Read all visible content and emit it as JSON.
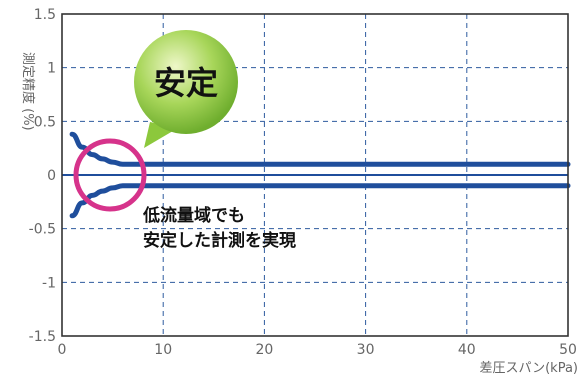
{
  "chart_data": {
    "type": "line",
    "title": "",
    "xlabel": "差圧スパン(kPa)",
    "ylabel": "測定精度 (%)",
    "xlim": [
      0,
      50
    ],
    "ylim": [
      -1.5,
      1.5
    ],
    "x_ticks": [
      "0",
      "10",
      "20",
      "30",
      "40",
      "50"
    ],
    "y_ticks": [
      "1.5",
      "1",
      "0.5",
      "0",
      "-0.5",
      "-1",
      "-1.5"
    ],
    "grid": true,
    "series": [
      {
        "x": [
          1,
          2,
          3,
          4,
          5,
          6,
          8,
          50
        ],
        "values": [
          0.38,
          0.26,
          0.19,
          0.15,
          0.12,
          0.1,
          0.1,
          0.1
        ]
      },
      {
        "x": [
          1,
          2,
          3,
          4,
          5,
          6,
          8,
          50
        ],
        "values": [
          -0.38,
          -0.26,
          -0.19,
          -0.15,
          -0.12,
          -0.1,
          -0.1,
          -0.1
        ]
      }
    ],
    "colors": {
      "line": "#1f4e9c",
      "grid": "#2e5b9f",
      "circle": "#d6338b",
      "bubble": "#8cc83c"
    },
    "annotations": {
      "bubble": "安定",
      "note_line1": "低流量域でも",
      "note_line2": "安定した計測を実現"
    }
  }
}
